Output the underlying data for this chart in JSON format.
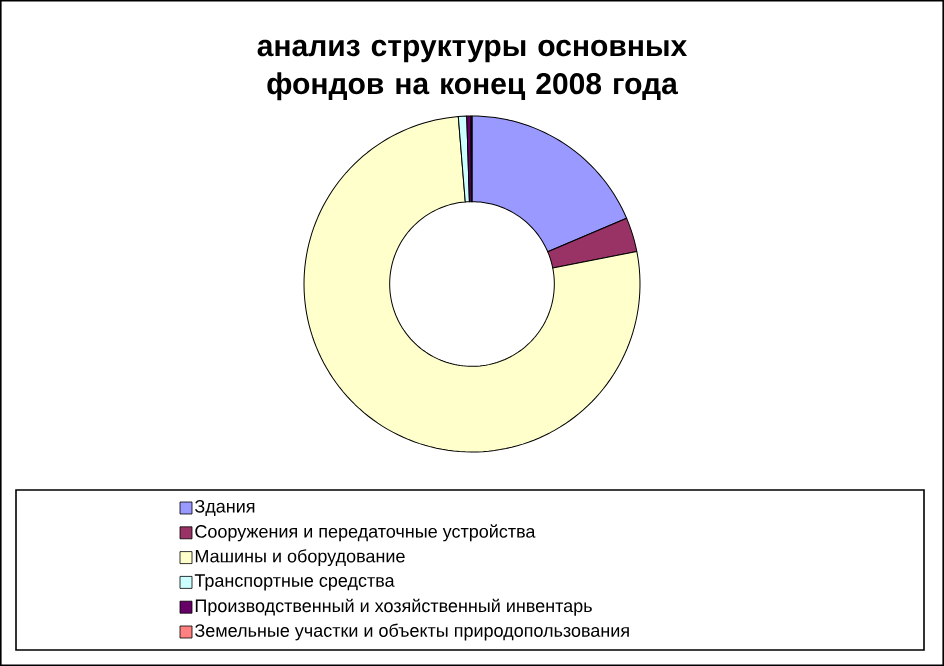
{
  "chart_data": {
    "type": "donut",
    "title": "анализ структуры основных фондов на конец 2008 года",
    "categories": [
      "Здания",
      "Сооружения и передаточные устройства",
      "Машины и оборудование",
      "Транспортные средства",
      "Производственный и хозяйственный инвентарь",
      "Земельные участки и объекты природопользования"
    ],
    "values": [
      18.6,
      3.3,
      76.8,
      0.8,
      0.4,
      0.1
    ],
    "colors": [
      "#9999ff",
      "#993366",
      "#ffffcc",
      "#ccffff",
      "#660066",
      "#ff8080"
    ],
    "legend": "bottom"
  }
}
